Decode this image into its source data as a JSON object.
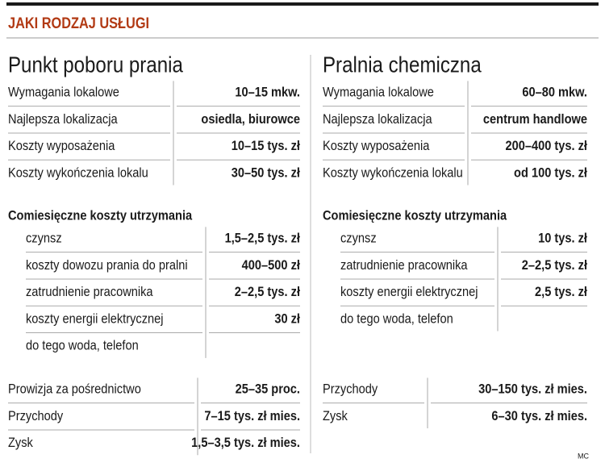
{
  "header": {
    "title": "JAKI RODZAJ USŁUGI"
  },
  "columns": [
    {
      "title": "Punkt poboru prania",
      "requirements": [
        {
          "label": "Wymagania lokalowe",
          "value": "10–15 mkw."
        },
        {
          "label": "Najlepsza lokalizacja",
          "value": "osiedla, biurowce"
        },
        {
          "label": "Koszty wyposażenia",
          "value": "10–15 tys. zł"
        },
        {
          "label": "Koszty wykończenia lokalu",
          "value": "30–50 tys. zł"
        }
      ],
      "monthly": {
        "title": "Comiesięczne koszty utrzymania",
        "rows": [
          {
            "label": "czynsz",
            "value": "1,5–2,5 tys. zł"
          },
          {
            "label": "koszty dowozu prania do pralni",
            "value": "400–500 zł"
          },
          {
            "label": "zatrudnienie pracownika",
            "value": "2–2,5 tys. zł"
          },
          {
            "label": "koszty energii elektrycznej",
            "value": "30 zł"
          },
          {
            "label": "do tego woda, telefon"
          }
        ]
      },
      "results": [
        {
          "label": "Prowizja za pośrednictwo",
          "value": "25–35 proc."
        },
        {
          "label": "Przychody",
          "value": "7–15 tys. zł mies."
        },
        {
          "label": "Zysk",
          "value": "1,5–3,5 tys. zł mies."
        }
      ]
    },
    {
      "title": "Pralnia chemiczna",
      "requirements": [
        {
          "label": "Wymagania lokalowe",
          "value": "60–80 mkw."
        },
        {
          "label": "Najlepsza lokalizacja",
          "value": "centrum handlowe"
        },
        {
          "label": "Koszty wyposażenia",
          "value": "200–400 tys. zł"
        },
        {
          "label": "Koszty wykończenia lokalu",
          "value": "od 100 tys. zł"
        }
      ],
      "monthly": {
        "title": "Comiesięczne koszty utrzymania",
        "rows": [
          {
            "label": "czynsz",
            "value": "10 tys. zł"
          },
          {
            "label": "zatrudnienie pracownika",
            "value": "2–2,5 tys. zł"
          },
          {
            "label": "koszty energii elektrycznej",
            "value": "2,5 tys. zł"
          },
          {
            "label": "do tego woda, telefon"
          }
        ]
      },
      "results": [
        {
          "label": "Przychody",
          "value": "30–150 tys. zł mies."
        },
        {
          "label": "Zysk",
          "value": "6–30 tys. zł mies."
        }
      ]
    }
  ],
  "credit": "MC"
}
